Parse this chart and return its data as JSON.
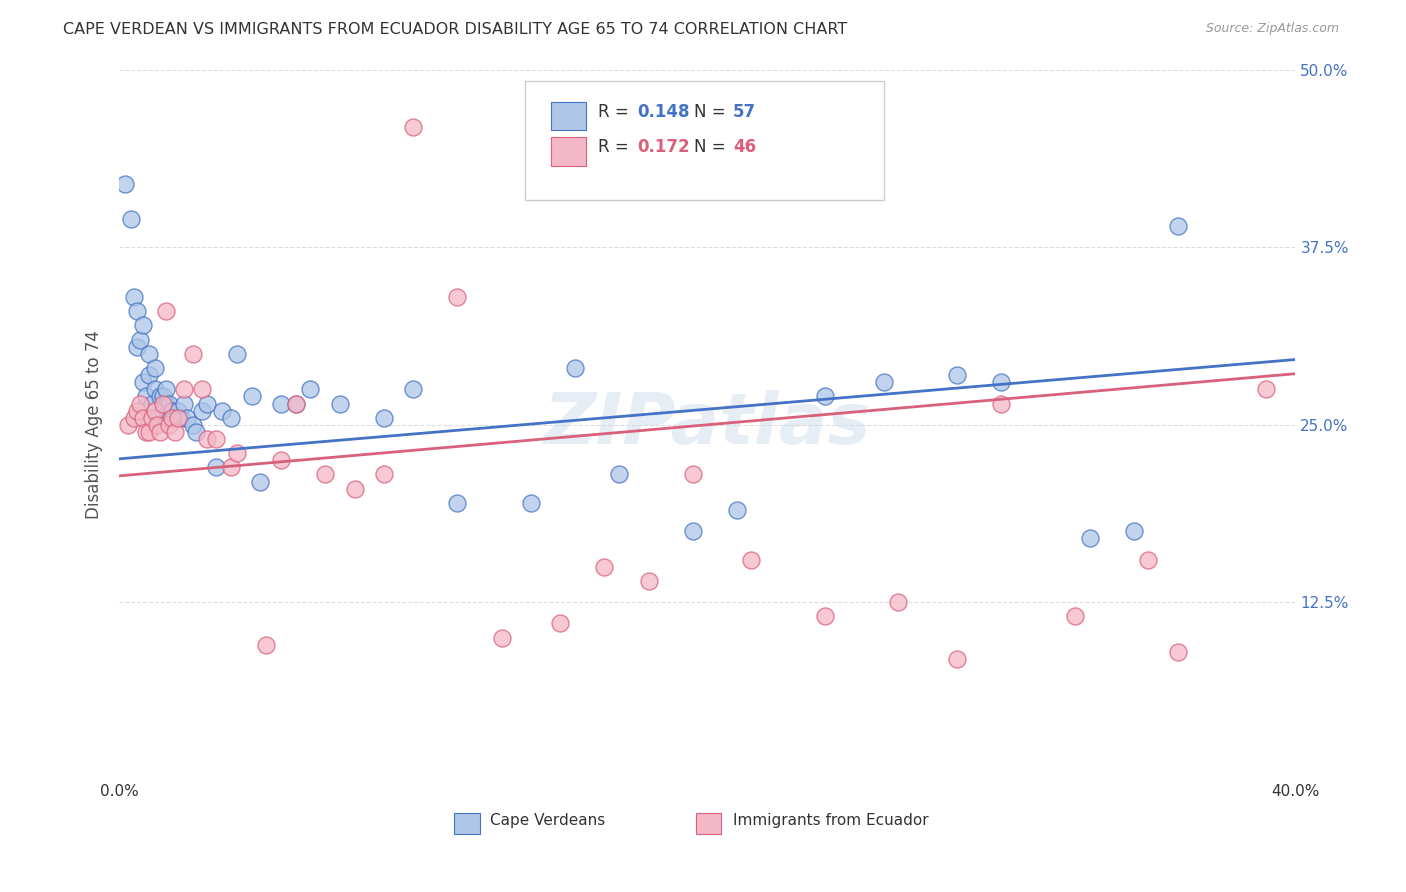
{
  "title": "CAPE VERDEAN VS IMMIGRANTS FROM ECUADOR DISABILITY AGE 65 TO 74 CORRELATION CHART",
  "source": "Source: ZipAtlas.com",
  "ylabel": "Disability Age 65 to 74",
  "x_min": 0.0,
  "x_max": 0.4,
  "y_min": 0.0,
  "y_max": 0.5,
  "x_ticks": [
    0.0,
    0.1,
    0.2,
    0.3,
    0.4
  ],
  "x_tick_labels": [
    "0.0%",
    "",
    "",
    "",
    "40.0%"
  ],
  "y_tick_labels_right": [
    "",
    "12.5%",
    "25.0%",
    "37.5%",
    "50.0%"
  ],
  "y_ticks": [
    0.0,
    0.125,
    0.25,
    0.375,
    0.5
  ],
  "legend1_r": "0.148",
  "legend1_n": "57",
  "legend2_r": "0.172",
  "legend2_n": "46",
  "legend1_color": "#aec6e8",
  "legend2_color": "#f4b8c8",
  "blue_line_color": "#4472c4",
  "pink_line_color": "#d9607a",
  "watermark": "ZIPatlas",
  "blue_regression": [
    0.226,
    0.175
  ],
  "pink_regression": [
    0.214,
    0.18
  ],
  "blue_x": [
    0.002,
    0.004,
    0.005,
    0.006,
    0.006,
    0.007,
    0.008,
    0.008,
    0.009,
    0.01,
    0.01,
    0.011,
    0.012,
    0.012,
    0.013,
    0.014,
    0.015,
    0.015,
    0.016,
    0.016,
    0.017,
    0.017,
    0.018,
    0.019,
    0.02,
    0.021,
    0.022,
    0.023,
    0.025,
    0.026,
    0.028,
    0.03,
    0.033,
    0.035,
    0.038,
    0.04,
    0.045,
    0.048,
    0.055,
    0.06,
    0.065,
    0.075,
    0.09,
    0.1,
    0.115,
    0.14,
    0.155,
    0.17,
    0.195,
    0.21,
    0.24,
    0.26,
    0.285,
    0.3,
    0.33,
    0.345,
    0.36
  ],
  "blue_y": [
    0.42,
    0.395,
    0.34,
    0.305,
    0.33,
    0.31,
    0.32,
    0.28,
    0.27,
    0.285,
    0.3,
    0.265,
    0.275,
    0.29,
    0.255,
    0.27,
    0.26,
    0.27,
    0.265,
    0.275,
    0.26,
    0.265,
    0.26,
    0.255,
    0.26,
    0.255,
    0.265,
    0.255,
    0.25,
    0.245,
    0.26,
    0.265,
    0.22,
    0.26,
    0.255,
    0.3,
    0.27,
    0.21,
    0.265,
    0.265,
    0.275,
    0.265,
    0.255,
    0.275,
    0.195,
    0.195,
    0.29,
    0.215,
    0.175,
    0.19,
    0.27,
    0.28,
    0.285,
    0.28,
    0.17,
    0.175,
    0.39
  ],
  "pink_x": [
    0.003,
    0.005,
    0.006,
    0.007,
    0.008,
    0.009,
    0.01,
    0.011,
    0.012,
    0.013,
    0.014,
    0.015,
    0.016,
    0.017,
    0.018,
    0.019,
    0.02,
    0.022,
    0.025,
    0.028,
    0.03,
    0.033,
    0.038,
    0.04,
    0.05,
    0.055,
    0.06,
    0.07,
    0.08,
    0.09,
    0.1,
    0.115,
    0.13,
    0.15,
    0.165,
    0.18,
    0.195,
    0.215,
    0.24,
    0.265,
    0.285,
    0.3,
    0.325,
    0.35,
    0.36,
    0.39
  ],
  "pink_y": [
    0.25,
    0.255,
    0.26,
    0.265,
    0.255,
    0.245,
    0.245,
    0.255,
    0.26,
    0.25,
    0.245,
    0.265,
    0.33,
    0.25,
    0.255,
    0.245,
    0.255,
    0.275,
    0.3,
    0.275,
    0.24,
    0.24,
    0.22,
    0.23,
    0.095,
    0.225,
    0.265,
    0.215,
    0.205,
    0.215,
    0.46,
    0.34,
    0.1,
    0.11,
    0.15,
    0.14,
    0.215,
    0.155,
    0.115,
    0.125,
    0.085,
    0.265,
    0.115,
    0.155,
    0.09,
    0.275
  ],
  "background_color": "#ffffff",
  "grid_color": "#dddddd"
}
